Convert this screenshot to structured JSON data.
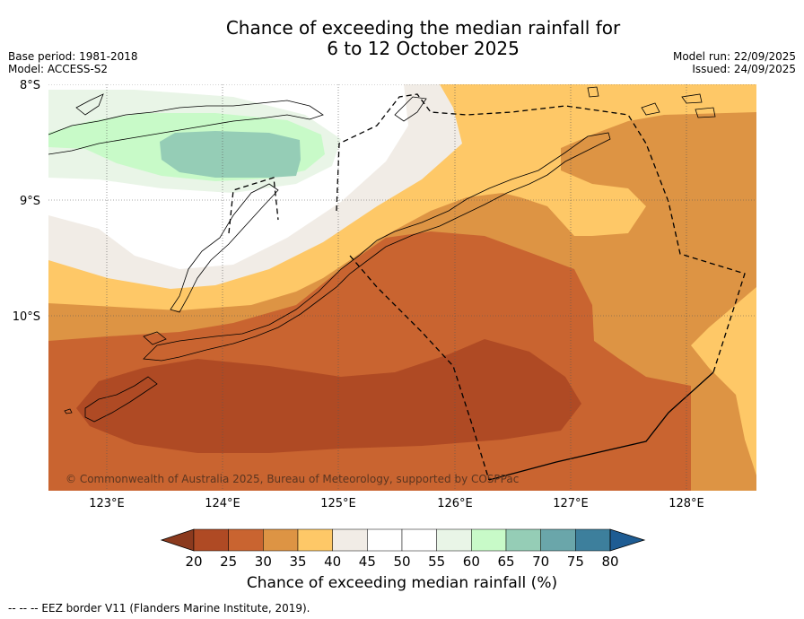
{
  "title_line1": "Chance of exceeding the median rainfall for",
  "title_line2": "6 to 12 October 2025",
  "base_period": "Base period: 1981-2018",
  "model": "Model: ACCESS-S2",
  "model_run": "Model run: 22/09/2025",
  "issued": "Issued: 24/09/2025",
  "copyright": "© Commonwealth of Australia 2025, Bureau of Meteorology, supported by COSPPac",
  "latitude_labels": [
    "8°S",
    "9°S",
    "10°S"
  ],
  "longitude_labels": [
    "123°E",
    "124°E",
    "125°E",
    "126°E",
    "127°E",
    "128°E"
  ],
  "colorbar": {
    "title": "Chance of exceeding median rainfall (%)",
    "ticks": [
      "20",
      "25",
      "30",
      "35",
      "40",
      "45",
      "50",
      "55",
      "60",
      "65",
      "70",
      "75",
      "80"
    ],
    "colors": [
      "#af4a24",
      "#c96430",
      "#dd9444",
      "#fec867",
      "#f1ece6",
      "#ffffff",
      "#ffffff",
      "#e9f5e7",
      "#c8fac8",
      "#95cdb6",
      "#6aa6aa",
      "#3d7f9c"
    ],
    "under_color": "#8b3a1e",
    "over_color": "#1e5c93"
  },
  "footnote": "-- -- -- EEZ border V11 (Flanders Marine Institute, 2019)."
}
